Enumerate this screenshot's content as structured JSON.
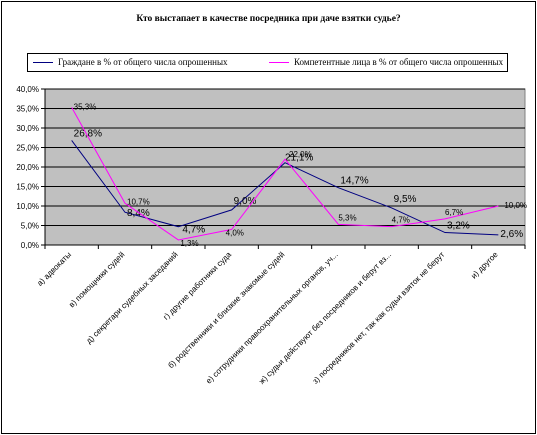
{
  "chart_data": {
    "type": "line",
    "title": "Кто выстапает в качестве посредника при даче взятки судье?",
    "categories": [
      "а) адвокаты",
      "в) помощники судей",
      "д) секретари судебных заседаний",
      "г) другие работники суда",
      "б) родственники и близкие знакомые судей",
      "е) сотрудники правоохранительных органов, уч...",
      "ж) судьи действуют без посредников и берут вз...",
      "з) посредников нет, так как судьи взяток не берут",
      "и) другое"
    ],
    "series": [
      {
        "name": "Граждане в % от общего числа опрошенных",
        "color": "#000080",
        "values": [
          26.8,
          8.4,
          4.7,
          9.0,
          21.1,
          14.7,
          9.5,
          3.2,
          2.6
        ],
        "labels": [
          "26,8%",
          "8,4%",
          "4,7%",
          "9,0%",
          "21,1%",
          "14,7%",
          "9,5%",
          "3,2%",
          "2,6%"
        ]
      },
      {
        "name": "Компетентные лица в % от общего числа опрошенных",
        "color": "#ff00ff",
        "values": [
          35.3,
          10.7,
          1.3,
          4.0,
          22.0,
          5.3,
          4.7,
          6.7,
          10.0
        ],
        "labels": [
          "35,3%",
          "10,7%",
          "1,3%",
          "4,0%",
          "22,0%",
          "5,3%",
          "4,7%",
          "6,7%",
          "10,0%"
        ]
      }
    ],
    "ylim": [
      0,
      40
    ],
    "yticks": [
      0,
      5,
      10,
      15,
      20,
      25,
      30,
      35,
      40
    ],
    "ytick_labels": [
      "0,0%",
      "5,0%",
      "10,0%",
      "15,0%",
      "20,0%",
      "25,0%",
      "30,0%",
      "35,0%",
      "40,0%"
    ],
    "grid": true,
    "legend_position": "top",
    "plot_background": "#c0c0c0"
  }
}
